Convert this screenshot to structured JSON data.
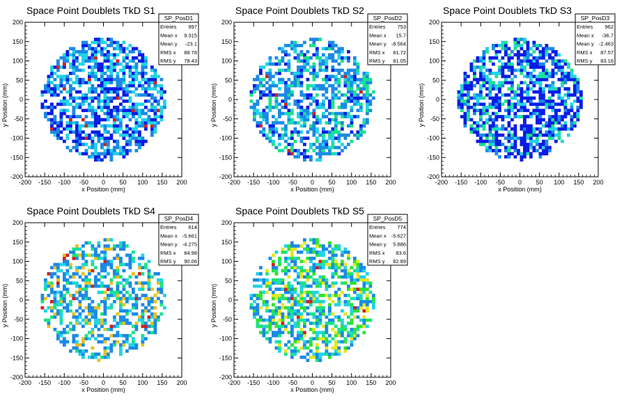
{
  "chart_data": [
    {
      "type": "heatmap",
      "title": "Space Point Doublets TkD S1",
      "xlabel": "x Position (mm)",
      "ylabel": "y Position (mm)",
      "xlim": [
        -200,
        200
      ],
      "ylim": [
        -200,
        200
      ],
      "xticks": [
        "-200",
        "-150",
        "-100",
        "-50",
        "0",
        "50",
        "100",
        "150",
        "200"
      ],
      "yticks": [
        "-200",
        "-150",
        "-100",
        "-50",
        "0",
        "50",
        "100",
        "150",
        "200"
      ],
      "stats": {
        "name": "SP_PosD1",
        "rows": [
          [
            "Entries",
            "997"
          ],
          [
            "Mean x",
            "9.315"
          ],
          [
            "Mean y",
            "-23.1"
          ],
          [
            "RMS x",
            "88.78"
          ],
          [
            "RMS y",
            "78.43"
          ]
        ]
      },
      "seed": 11,
      "fill": 0.62,
      "palette": [
        "#0a1ce6",
        "#0a1ce6",
        "#1b8ae6",
        "#1b8ae6",
        "#20d4e6",
        "#20d4e6",
        "#d21f1f"
      ]
    },
    {
      "type": "heatmap",
      "title": "Space Point Doublets TkD S2",
      "xlabel": "x Position (mm)",
      "ylabel": "y Position (mm)",
      "xlim": [
        -200,
        200
      ],
      "ylim": [
        -200,
        200
      ],
      "xticks": [
        "-200",
        "-150",
        "-100",
        "-50",
        "0",
        "50",
        "100",
        "150",
        "200"
      ],
      "yticks": [
        "-200",
        "-150",
        "-100",
        "-50",
        "0",
        "50",
        "100",
        "150",
        "200"
      ],
      "stats": {
        "name": "SP_PosD2",
        "rows": [
          [
            "Entries",
            "753"
          ],
          [
            "Mean x",
            "15.7"
          ],
          [
            "Mean y",
            "-8.564"
          ],
          [
            "RMS x",
            "81.72"
          ],
          [
            "RMS y",
            "81.05"
          ]
        ]
      },
      "seed": 23,
      "fill": 0.55,
      "palette": [
        "#1b8ae6",
        "#1b8ae6",
        "#1b8ae6",
        "#20d4e6",
        "#19e38a",
        "#0a1ce6",
        "#d21f1f"
      ]
    },
    {
      "type": "heatmap",
      "title": "Space Point Doublets TkD S3",
      "xlabel": "x Position (mm)",
      "ylabel": "y Position (mm)",
      "xlim": [
        -200,
        200
      ],
      "ylim": [
        -200,
        200
      ],
      "xticks": [
        "-200",
        "-150",
        "-100",
        "-50",
        "0",
        "50",
        "100",
        "150",
        "200"
      ],
      "yticks": [
        "-200",
        "-150",
        "-100",
        "-50",
        "0",
        "50",
        "100",
        "150",
        "200"
      ],
      "stats": {
        "name": "SP_PosD3",
        "rows": [
          [
            "Entries",
            "962"
          ],
          [
            "Mean x",
            "-36.7"
          ],
          [
            "Mean y",
            "-2.463"
          ],
          [
            "RMS x",
            "87.57"
          ],
          [
            "RMS y",
            "83.16"
          ]
        ]
      },
      "seed": 37,
      "fill": 0.64,
      "palette": [
        "#0a1ce6",
        "#0a1ce6",
        "#0a1ce6",
        "#1b8ae6",
        "#20d4e6",
        "#19e38a",
        "#0a1ce6"
      ]
    },
    {
      "type": "heatmap",
      "title": "Space Point Doublets TkD S4",
      "xlabel": "x Position (mm)",
      "ylabel": "y Position (mm)",
      "xlim": [
        -200,
        200
      ],
      "ylim": [
        -200,
        200
      ],
      "xticks": [
        "-200",
        "-150",
        "-100",
        "-50",
        "0",
        "50",
        "100",
        "150",
        "200"
      ],
      "yticks": [
        "-200",
        "-150",
        "-100",
        "-50",
        "0",
        "50",
        "100",
        "150",
        "200"
      ],
      "stats": {
        "name": "SP_PosD4",
        "rows": [
          [
            "Entries",
            "614"
          ],
          [
            "Mean x",
            "-5.661"
          ],
          [
            "Mean y",
            "-4.275"
          ],
          [
            "RMS x",
            "84.98"
          ],
          [
            "RMS y",
            "90.06"
          ]
        ]
      },
      "seed": 41,
      "fill": 0.48,
      "palette": [
        "#1b8ae6",
        "#1b8ae6",
        "#1b8ae6",
        "#20d4e6",
        "#19e38a",
        "#e6c21f",
        "#d21f1f"
      ]
    },
    {
      "type": "heatmap",
      "title": "Space Point Doublets TkD S5",
      "xlabel": "x Position (mm)",
      "ylabel": "y Position (mm)",
      "xlim": [
        -200,
        200
      ],
      "ylim": [
        -200,
        200
      ],
      "xticks": [
        "-200",
        "-150",
        "-100",
        "-50",
        "0",
        "50",
        "100",
        "150",
        "200"
      ],
      "yticks": [
        "-200",
        "-150",
        "-100",
        "-50",
        "0",
        "50",
        "100",
        "150",
        "200"
      ],
      "stats": {
        "name": "SP_PosD5",
        "rows": [
          [
            "Entries",
            "774"
          ],
          [
            "Mean x",
            "-5.627"
          ],
          [
            "Mean y",
            "5.886"
          ],
          [
            "RMS x",
            "83.6"
          ],
          [
            "RMS y",
            "82.89"
          ]
        ]
      },
      "seed": 53,
      "fill": 0.55,
      "palette": [
        "#1b8ae6",
        "#1b8ae6",
        "#20d4e6",
        "#19e38a",
        "#2ee22e",
        "#e6e61f",
        "#d21f1f"
      ]
    }
  ]
}
